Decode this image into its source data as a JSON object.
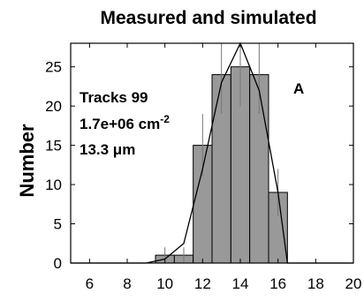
{
  "chart_data": {
    "type": "bar",
    "title": "Measured and simulated",
    "xlabel": "",
    "ylabel": "Number",
    "xlim": [
      5,
      20
    ],
    "ylim": [
      0,
      28
    ],
    "x_ticks": [
      6,
      8,
      10,
      12,
      14,
      16,
      18,
      20
    ],
    "y_ticks": [
      0,
      5,
      10,
      15,
      20,
      25
    ],
    "bins": [
      {
        "x0": 9.5,
        "x1": 10.5,
        "value": 1,
        "err_lo": 0,
        "err_hi": 2
      },
      {
        "x0": 10.5,
        "x1": 11.5,
        "value": 1,
        "err_lo": 0,
        "err_hi": 2
      },
      {
        "x0": 11.5,
        "x1": 12.5,
        "value": 15,
        "err_lo": 11,
        "err_hi": 19
      },
      {
        "x0": 12.5,
        "x1": 13.5,
        "value": 24,
        "err_lo": 19,
        "err_hi": 29
      },
      {
        "x0": 13.5,
        "x1": 14.5,
        "value": 25,
        "err_lo": 20,
        "err_hi": 30
      },
      {
        "x0": 14.5,
        "x1": 15.5,
        "value": 24,
        "err_lo": 19,
        "err_hi": 29
      },
      {
        "x0": 15.5,
        "x1": 16.5,
        "value": 9,
        "err_lo": 6,
        "err_hi": 12
      }
    ],
    "simulated_curve": {
      "x": [
        5,
        9,
        10,
        11,
        12,
        13,
        14,
        15,
        16,
        16.5,
        20
      ],
      "y": [
        0,
        0,
        0.5,
        2.5,
        12,
        23,
        28,
        22,
        9,
        0,
        0
      ]
    },
    "annotations": {
      "panel_label": "A",
      "line1": "Tracks 99",
      "line2_base": "1.7e+06 cm",
      "line2_sup": "-2",
      "line3": "13.3 μm"
    }
  }
}
